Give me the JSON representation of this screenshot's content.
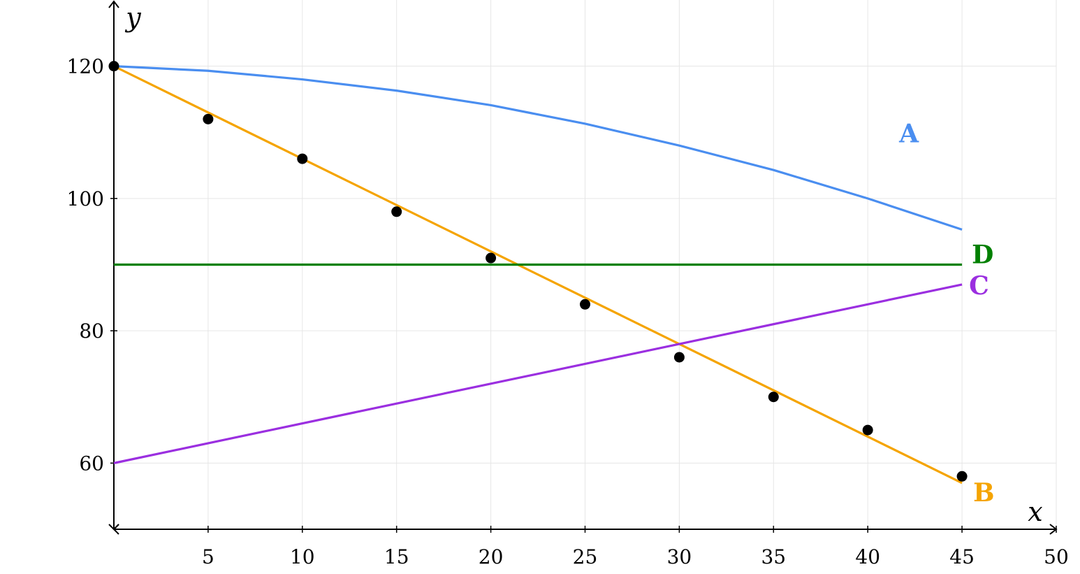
{
  "chart_data": {
    "type": "line",
    "title": "",
    "xlabel": "x",
    "ylabel": "y",
    "xlim": [
      0,
      50
    ],
    "ylim": [
      50,
      130
    ],
    "x_ticks": [
      5,
      10,
      15,
      20,
      25,
      30,
      35,
      40,
      45,
      50
    ],
    "y_ticks": [
      60,
      80,
      100,
      120
    ],
    "grid": true,
    "series": [
      {
        "name": "A",
        "color": "#4a8ef0",
        "x": [
          0,
          5,
          10,
          15,
          20,
          25,
          30,
          35,
          40,
          45
        ],
        "y": [
          120,
          119.3,
          118.0,
          116.3,
          114.1,
          111.3,
          108.0,
          104.3,
          100.0,
          95.3
        ]
      },
      {
        "name": "B",
        "color": "#f5a400",
        "x": [
          0,
          45
        ],
        "y": [
          120,
          57
        ]
      },
      {
        "name": "C",
        "color": "#9b2fe0",
        "x": [
          0,
          45
        ],
        "y": [
          60,
          87
        ]
      },
      {
        "name": "D",
        "color": "#008000",
        "x": [
          0,
          45
        ],
        "y": [
          90,
          90
        ]
      }
    ],
    "points": {
      "color": "#000000",
      "x": [
        0,
        5,
        10,
        15,
        20,
        25,
        30,
        35,
        40,
        45
      ],
      "y": [
        120,
        112,
        106,
        98,
        91,
        84,
        76,
        70,
        65,
        58
      ]
    }
  }
}
